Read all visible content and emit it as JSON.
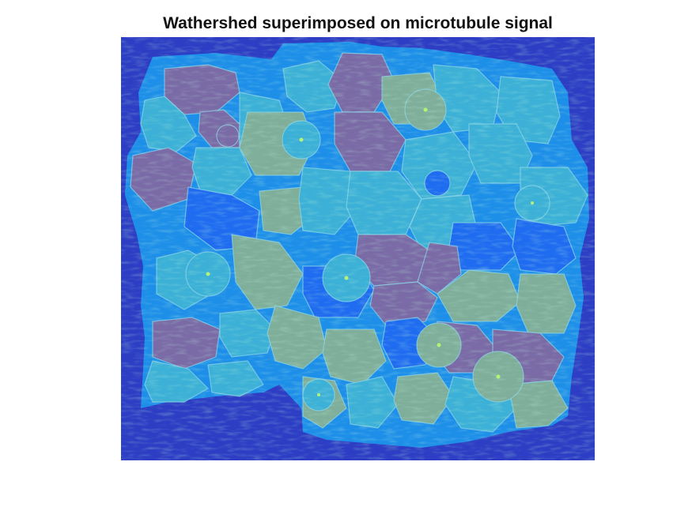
{
  "figure": {
    "title": "Wathershed superimposed on microtubule signal"
  },
  "image": {
    "description_name": "watershed-overlay",
    "colors": {
      "background": "#2d3ec4",
      "tissue": "#1e8fe8",
      "cell_blue": "#1f6cf0",
      "cell_teal": "#3cb0d6",
      "cell_purple": "#7a6aa6",
      "cell_olive": "#7fae9a",
      "boundary": "#8fd6e8"
    }
  }
}
